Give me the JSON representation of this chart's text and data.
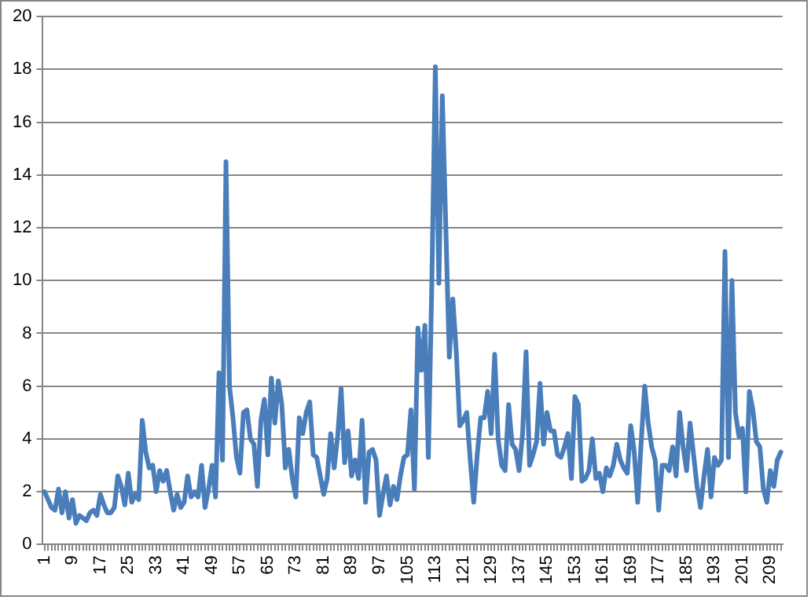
{
  "chart_data": {
    "type": "line",
    "categories": [
      "1",
      null,
      null,
      null,
      null,
      null,
      null,
      null,
      "9",
      null,
      null,
      null,
      null,
      null,
      null,
      null,
      "17",
      null,
      null,
      null,
      null,
      null,
      null,
      null,
      "25",
      null,
      null,
      null,
      null,
      null,
      null,
      null,
      "33",
      null,
      null,
      null,
      null,
      null,
      null,
      null,
      "41",
      null,
      null,
      null,
      null,
      null,
      null,
      null,
      "49",
      null,
      null,
      null,
      null,
      null,
      null,
      null,
      "57",
      null,
      null,
      null,
      null,
      null,
      null,
      null,
      "65",
      null,
      null,
      null,
      null,
      null,
      null,
      null,
      "73",
      null,
      null,
      null,
      null,
      null,
      null,
      null,
      "81",
      null,
      null,
      null,
      null,
      null,
      null,
      null,
      "89",
      null,
      null,
      null,
      null,
      null,
      null,
      null,
      "97",
      null,
      null,
      null,
      null,
      null,
      null,
      null,
      "105",
      null,
      null,
      null,
      null,
      null,
      null,
      null,
      "113",
      null,
      null,
      null,
      null,
      null,
      null,
      null,
      "121",
      null,
      null,
      null,
      null,
      null,
      null,
      null,
      "129",
      null,
      null,
      null,
      null,
      null,
      null,
      null,
      "137",
      null,
      null,
      null,
      null,
      null,
      null,
      null,
      "145",
      null,
      null,
      null,
      null,
      null,
      null,
      null,
      "153",
      null,
      null,
      null,
      null,
      null,
      null,
      null,
      "161",
      null,
      null,
      null,
      null,
      null,
      null,
      null,
      "169",
      null,
      null,
      null,
      null,
      null,
      null,
      null,
      "177",
      null,
      null,
      null,
      null,
      null,
      null,
      null,
      "185",
      null,
      null,
      null,
      null,
      null,
      null,
      null,
      "193",
      null,
      null,
      null,
      null,
      null,
      null,
      null,
      "201",
      null,
      null,
      null,
      null,
      null,
      null,
      null,
      "209",
      null,
      null,
      null
    ],
    "series": [
      {
        "color": "#4a7ebb",
        "values": [
          2.0,
          1.7,
          1.4,
          1.3,
          2.1,
          1.2,
          2.0,
          1.0,
          1.7,
          0.8,
          1.1,
          1.0,
          0.9,
          1.2,
          1.3,
          1.1,
          1.9,
          1.5,
          1.2,
          1.2,
          1.4,
          2.6,
          2.2,
          1.5,
          2.7,
          1.6,
          1.9,
          1.7,
          4.7,
          3.5,
          2.9,
          3.0,
          2.0,
          2.8,
          2.4,
          2.8,
          2.0,
          1.3,
          1.9,
          1.4,
          1.6,
          2.6,
          1.8,
          2.0,
          1.8,
          3.0,
          1.4,
          2.1,
          3.0,
          1.8,
          6.5,
          3.2,
          14.5,
          6.0,
          4.8,
          3.3,
          2.7,
          5.0,
          5.1,
          4.0,
          3.8,
          2.2,
          4.7,
          5.5,
          3.4,
          6.3,
          4.6,
          6.2,
          5.3,
          2.9,
          3.6,
          2.5,
          1.8,
          4.8,
          4.2,
          5.0,
          5.4,
          3.4,
          3.3,
          2.6,
          1.9,
          2.5,
          4.2,
          2.9,
          4.1,
          5.9,
          3.1,
          4.3,
          2.6,
          3.2,
          2.5,
          4.7,
          1.6,
          3.5,
          3.6,
          3.2,
          1.1,
          1.9,
          2.6,
          1.5,
          2.2,
          1.7,
          2.6,
          3.3,
          3.4,
          5.1,
          2.1,
          8.2,
          6.6,
          8.3,
          3.3,
          10.0,
          18.1,
          9.9,
          17.0,
          12.0,
          7.1,
          9.3,
          7.3,
          4.5,
          4.7,
          5.0,
          3.2,
          1.6,
          3.4,
          4.8,
          4.8,
          5.8,
          4.2,
          7.2,
          4.0,
          3.0,
          2.8,
          5.3,
          3.8,
          3.6,
          2.8,
          4.2,
          7.3,
          3.0,
          3.4,
          3.9,
          6.1,
          3.8,
          5.0,
          4.3,
          4.3,
          3.4,
          3.3,
          3.7,
          4.2,
          2.5,
          5.6,
          5.3,
          2.4,
          2.5,
          2.8,
          4.0,
          2.5,
          2.7,
          2.0,
          2.9,
          2.6,
          3.0,
          3.8,
          3.2,
          2.9,
          2.7,
          4.5,
          3.5,
          1.6,
          3.9,
          6.0,
          4.6,
          3.7,
          3.2,
          1.3,
          3.0,
          3.0,
          2.8,
          3.7,
          2.6,
          5.0,
          3.7,
          2.8,
          4.6,
          3.4,
          2.2,
          1.4,
          2.6,
          3.6,
          1.8,
          3.3,
          3.0,
          3.2,
          11.1,
          3.3,
          10.0,
          5.0,
          4.1,
          4.4,
          2.0,
          5.8,
          5.1,
          3.9,
          3.7,
          2.1,
          1.6,
          2.8,
          2.2,
          3.2,
          3.5
        ]
      }
    ],
    "ylim": [
      0,
      20
    ],
    "yticks": [
      0,
      2,
      4,
      6,
      8,
      10,
      12,
      14,
      16,
      18,
      20
    ],
    "grid": "y",
    "legend": false,
    "marker": "none",
    "line_style": "solid"
  }
}
